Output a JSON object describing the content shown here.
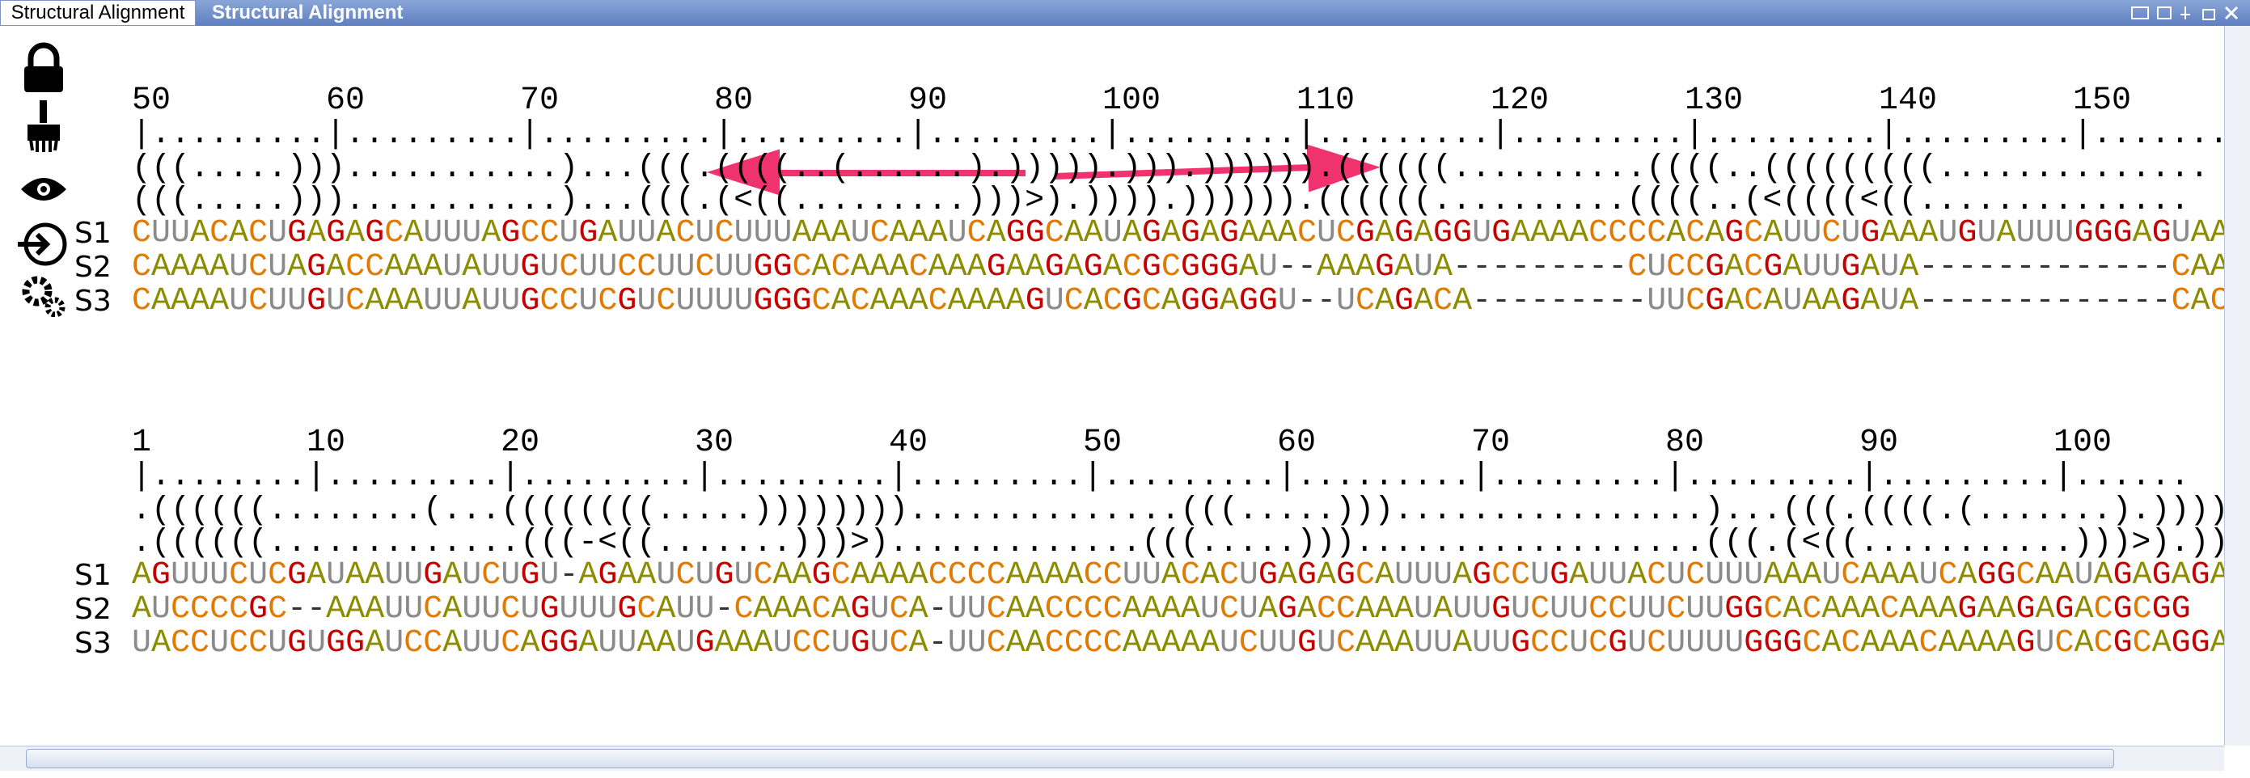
{
  "window": {
    "tab_title": "Structural Alignment",
    "bar_title": "Structural Alignment"
  },
  "blocks": [
    {
      "ruler_numbers": [
        "50",
        "60",
        "70",
        "80",
        "90",
        "100",
        "110",
        "120",
        "130",
        "140",
        "150"
      ],
      "ruler": "|.........|.........|.........|.........|.........|.........|.........|.........|.........|.........|.......",
      "structures": [
        "(((.....)))...........)...(((.((((..(......).))))).))).)))))).((((((..........((((..(((((((((..............",
        "(((.....)))...........)...(((.(<((.........)))>).)))).)))))).((((((..........((((..(<((((<((.............."
      ],
      "rows": [
        {
          "name": "S1",
          "sequence": "CUUACACUGAGAGCAUUUAGCCUGAUUACUCUUUAAAUCAAAUCAGGCAAUAGAGAGAAACUCGAGAGGUGAAAACCCCACAGCAUUCUGAAAUGUAUUUGGGAGUAA"
        },
        {
          "name": "S2",
          "sequence": "CAAAAUCUAGACCAAAUAUUGUCUUCCUUCUUGGCACAAACAAAGAAGAGACGCGGGAU--AAAGAUA---------CUCCGACGAUUGAUA-------------CAA"
        },
        {
          "name": "S3",
          "sequence": "CAAAAUCUUGUCAAAUUAUUGCCUCGUCUUUUGGGCACAAACAAAAGUCACGCAGGAGGU--UCAGACA---------UUCGACAUAAGAUA-------------CAC"
        }
      ]
    },
    {
      "ruler_numbers": [
        "1",
        "10",
        "20",
        "30",
        "40",
        "50",
        "60",
        "70",
        "80",
        "90",
        "100"
      ],
      "ruler": "|........|.........|.........|.........|.........|.........|.........|.........|.........|.........|......",
      "structures": [
        ".((((((........(...((((((((.....))))))))..............(((.....)))................)...(((.((((.(.......).))))).))).))))",
        ".((((((.............(((-<((.......)))>).............(((.....)))..................(((.(<((...........)))>).))).))))"
      ],
      "rows": [
        {
          "name": "S1",
          "sequence": "AGUUUCUCGAUAAUUGAUCUGU-AGAAUCUGUCAAGCAAAACCCCAAAACCUUACACUGAGAGCAUUUAGCCUGAUUACUCUUUAAAUCAAAUCAGGCAAUAGAGAGA"
        },
        {
          "name": "S2",
          "sequence": "AUCCCCGC--AAAUUCAUUCUGUUUGCAUU-CAAACAGUCA-UUCAACCCCAAAAUCUAGACCAAAUAUUGUCUUCCUUCUUGGCACAAACAAAGAAGAGACGCGG"
        },
        {
          "name": "S3",
          "sequence": "UACCUCCUGUGGAUCCAUUCAGGAUUAAUGAAAUCCUGUCA-UUCAACCCCAAAAAUCUUGUCAAAUUAUUGCCUCGUCUUUUGGGCACAAACAAAAGUCACGCAGGA"
        }
      ]
    }
  ]
}
